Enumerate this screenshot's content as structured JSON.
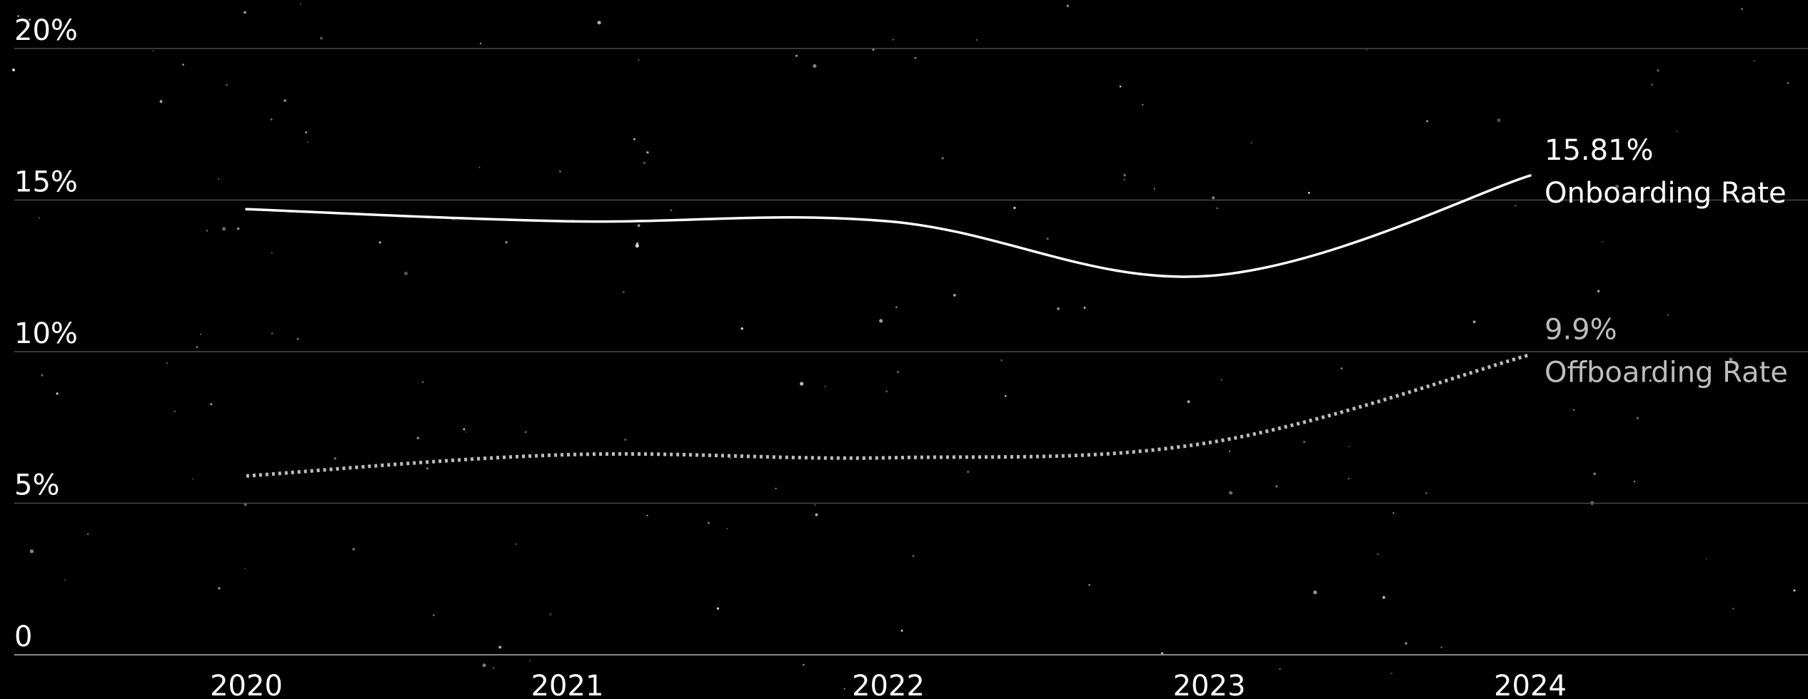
{
  "chart_data": {
    "type": "line",
    "title": "",
    "xlabel": "",
    "ylabel": "",
    "x": [
      "2020",
      "2021",
      "2022",
      "2023",
      "2024"
    ],
    "ylim": [
      0,
      20
    ],
    "y_ticks": [
      {
        "value": 0,
        "label": "0"
      },
      {
        "value": 5,
        "label": "5%"
      },
      {
        "value": 10,
        "label": "10%"
      },
      {
        "value": 15,
        "label": "15%"
      },
      {
        "value": 20,
        "label": "20%"
      }
    ],
    "grid": true,
    "legend": "inline labels at line ends",
    "series": [
      {
        "name": "Onboarding Rate",
        "values": [
          14.7,
          14.3,
          14.3,
          12.5,
          15.81
        ],
        "end_label": "15.81%",
        "style": "solid",
        "color": "#ffffff"
      },
      {
        "name": "Offboarding Rate",
        "values": [
          5.9,
          6.6,
          6.5,
          7.0,
          9.9
        ],
        "end_label": "9.9%",
        "style": "dotted",
        "color": "#bdbdbd"
      }
    ]
  },
  "colors": {
    "background": "#000000",
    "grid": "#4a4a4a",
    "axis": "#8a8a8a",
    "text": "#ffffff"
  }
}
